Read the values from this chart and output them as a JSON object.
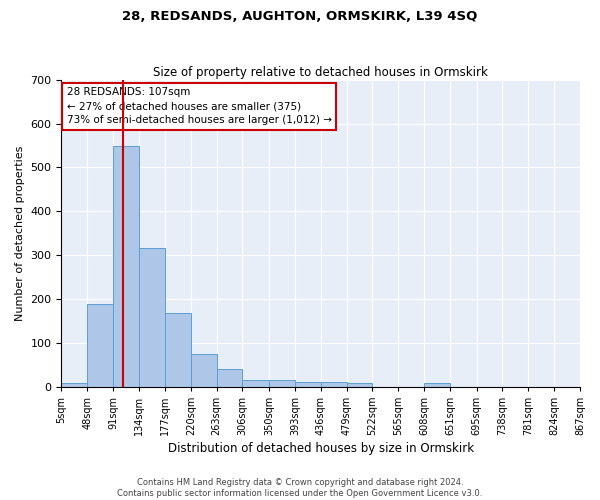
{
  "title": "28, REDSANDS, AUGHTON, ORMSKIRK, L39 4SQ",
  "subtitle": "Size of property relative to detached houses in Ormskirk",
  "xlabel": "Distribution of detached houses by size in Ormskirk",
  "ylabel": "Number of detached properties",
  "bin_labels": [
    "5sqm",
    "48sqm",
    "91sqm",
    "134sqm",
    "177sqm",
    "220sqm",
    "263sqm",
    "306sqm",
    "350sqm",
    "393sqm",
    "436sqm",
    "479sqm",
    "522sqm",
    "565sqm",
    "608sqm",
    "651sqm",
    "695sqm",
    "738sqm",
    "781sqm",
    "824sqm",
    "867sqm"
  ],
  "bin_edges": [
    5,
    48,
    91,
    134,
    177,
    220,
    263,
    306,
    350,
    393,
    436,
    479,
    522,
    565,
    608,
    651,
    695,
    738,
    781,
    824,
    867
  ],
  "bar_values": [
    8,
    188,
    548,
    316,
    168,
    75,
    40,
    16,
    16,
    11,
    11,
    8,
    0,
    0,
    8,
    0,
    0,
    0,
    0,
    0
  ],
  "bar_color": "#aec6e8",
  "bar_edge_color": "#5a9fd4",
  "marker_value": 107,
  "marker_color": "#cc0000",
  "ylim": [
    0,
    700
  ],
  "yticks": [
    0,
    100,
    200,
    300,
    400,
    500,
    600,
    700
  ],
  "annotation_text": "28 REDSANDS: 107sqm\n← 27% of detached houses are smaller (375)\n73% of semi-detached houses are larger (1,012) →",
  "annotation_box_color": "#cc0000",
  "footnote": "Contains HM Land Registry data © Crown copyright and database right 2024.\nContains public sector information licensed under the Open Government Licence v3.0.",
  "background_color": "#e8eef8",
  "fig_width": 6.0,
  "fig_height": 5.0
}
